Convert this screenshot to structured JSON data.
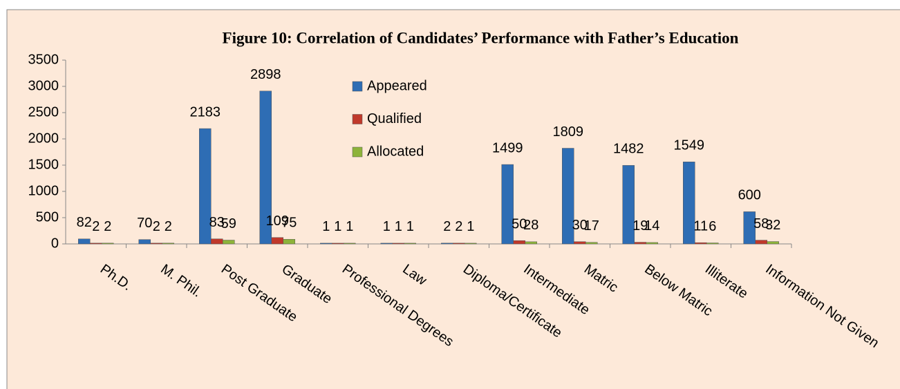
{
  "chart_data": {
    "type": "bar",
    "title": "Figure 10: Correlation of Candidates’ Performance with Father’s Education",
    "categories": [
      "Ph.D.",
      "M. Phil.",
      "Post Graduate",
      "Graduate",
      "Professional Degrees",
      "Law",
      "Diploma/Certificate",
      "Intermediate",
      "Matric",
      "Below Matric",
      "Illiterate",
      "Information Not Given"
    ],
    "series": [
      {
        "name": "Appeared",
        "color": "#2e6db4",
        "values": [
          82,
          70,
          2183,
          2898,
          1,
          1,
          2,
          1499,
          1809,
          1482,
          1549,
          600
        ]
      },
      {
        "name": "Qualified",
        "color": "#c0392b",
        "values": [
          2,
          2,
          83,
          109,
          1,
          1,
          2,
          50,
          30,
          19,
          11,
          58
        ]
      },
      {
        "name": "Allocated",
        "color": "#8db33a",
        "values": [
          2,
          2,
          59,
          75,
          1,
          1,
          1,
          28,
          17,
          14,
          6,
          32
        ]
      }
    ],
    "ylim": [
      0,
      3500
    ],
    "yticks": [
      0,
      500,
      1000,
      1500,
      2000,
      2500,
      3000,
      3500
    ]
  }
}
